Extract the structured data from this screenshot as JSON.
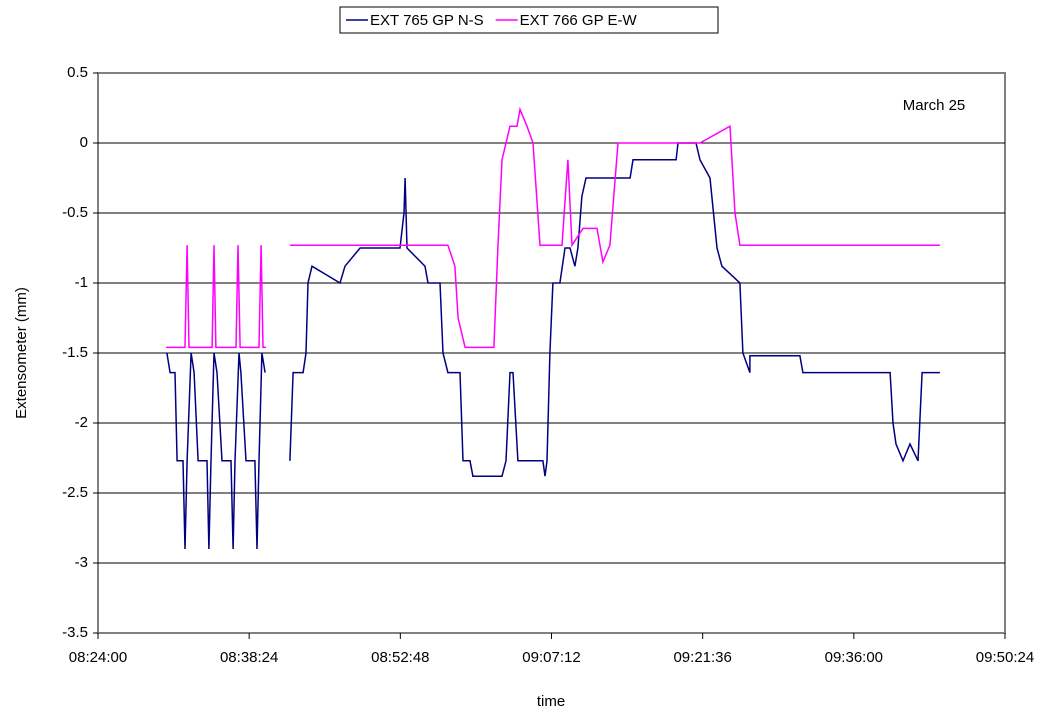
{
  "chart_data": {
    "type": "line",
    "x_label": "time",
    "y_label": "Extensometer (mm)",
    "annotation": "March 25",
    "xlim": [
      "08:24:00",
      "09:50:24"
    ],
    "xticks": [
      "08:24:00",
      "08:38:24",
      "08:52:48",
      "09:07:12",
      "09:21:36",
      "09:36:00",
      "09:50:24"
    ],
    "ylim": [
      -3.5,
      0.5
    ],
    "yticks": [
      0.5,
      0,
      -0.5,
      -1,
      -1.5,
      -2,
      -2.5,
      -3,
      -3.5
    ],
    "grid": true,
    "legend": "top",
    "series": [
      {
        "name": "EXT 765 GP N-S",
        "color": "#000080",
        "x": [
          "08:30:34",
          "08:30:52",
          "08:31:20",
          "08:31:32",
          "08:32:06",
          "08:32:17",
          "08:32:29",
          "08:32:52",
          "08:33:09",
          "08:33:32",
          "08:34:23",
          "08:34:34",
          "08:34:46",
          "08:35:03",
          "08:35:20",
          "08:35:49",
          "08:36:40",
          "08:36:52",
          "08:37:03",
          "08:37:26",
          "08:37:37",
          "08:38:06",
          "08:38:57",
          "08:39:09",
          "08:39:20",
          "08:39:37",
          "08:39:55",
          null,
          "08:42:17",
          "08:42:35",
          "08:43:32",
          "08:43:49",
          "08:44:00",
          "08:44:23",
          "08:47:03",
          "08:47:32",
          "08:48:58",
          "08:52:46",
          "08:53:09",
          "08:53:15",
          "08:53:26",
          "08:55:09",
          "08:55:26",
          "08:56:35",
          "08:56:52",
          "08:57:20",
          "08:58:29",
          "08:58:46",
          "08:59:26",
          "08:59:43",
          "09:02:29",
          "09:02:52",
          "09:03:15",
          "09:03:32",
          "09:04:00",
          "09:06:23",
          "09:06:35",
          "09:06:46",
          "09:07:03",
          "09:07:20",
          "09:08:00",
          "09:08:29",
          "09:08:58",
          "09:09:26",
          "09:09:43",
          "09:10:06",
          "09:10:29",
          "09:14:41",
          "09:14:58",
          "09:19:04",
          "09:19:15",
          "09:20:58",
          "09:21:21",
          "09:22:18",
          "09:22:58",
          "09:23:26",
          "09:25:09",
          "09:25:26",
          "09:26:06",
          "09:26:06",
          "09:30:52",
          "09:31:09",
          "09:39:27",
          "09:39:44",
          "09:40:01",
          "09:40:41",
          "09:41:21",
          "09:42:07",
          "09:42:30",
          "09:44:12"
        ],
        "values": [
          -1.5,
          -1.64,
          -1.64,
          -2.27,
          -2.27,
          -2.9,
          -2.27,
          -1.5,
          -1.64,
          -2.27,
          -2.27,
          -2.9,
          -2.27,
          -1.5,
          -1.64,
          -2.27,
          -2.27,
          -2.9,
          -2.27,
          -1.5,
          -1.64,
          -2.27,
          -2.27,
          -2.9,
          -2.27,
          -1.5,
          -1.64,
          null,
          -2.27,
          -1.64,
          -1.64,
          -1.5,
          -1.0,
          -0.88,
          -1.0,
          -0.88,
          -0.75,
          -0.75,
          -0.5,
          -0.25,
          -0.75,
          -0.88,
          -1.0,
          -1.0,
          -1.5,
          -1.64,
          -1.64,
          -2.27,
          -2.27,
          -2.38,
          -2.38,
          -2.27,
          -1.64,
          -1.64,
          -2.27,
          -2.27,
          -2.38,
          -2.27,
          -1.5,
          -1.0,
          -1.0,
          -0.75,
          -0.75,
          -0.88,
          -0.75,
          -0.38,
          -0.25,
          -0.25,
          -0.12,
          -0.12,
          0,
          0,
          -0.12,
          -0.25,
          -0.75,
          -0.88,
          -1.0,
          -1.5,
          -1.64,
          -1.52,
          -1.52,
          -1.64,
          -1.64,
          -2.0,
          -2.15,
          -2.27,
          -2.15,
          -2.27,
          -1.64,
          -1.64
        ]
      },
      {
        "name": "EXT 766 GP E-W",
        "color": "#ff00ff",
        "x": [
          "08:30:29",
          "08:32:17",
          "08:32:29",
          "08:32:40",
          "08:34:52",
          "08:35:03",
          "08:35:14",
          "08:37:09",
          "08:37:20",
          "08:37:32",
          "08:39:20",
          "08:39:32",
          "08:39:43",
          "08:40:00",
          null,
          "08:42:17",
          "08:56:35",
          "08:57:20",
          "08:58:00",
          "08:58:18",
          "08:58:58",
          "09:01:43",
          "09:02:06",
          "09:02:29",
          "09:02:52",
          "09:03:15",
          "09:03:55",
          "09:04:12",
          "09:04:52",
          "09:05:26",
          "09:06:06",
          "09:08:12",
          "09:08:46",
          "09:09:09",
          "09:10:12",
          "09:11:32",
          "09:12:06",
          "09:12:46",
          "09:13:32",
          "09:21:21",
          "09:24:12",
          "09:24:41",
          "09:25:09",
          "09:28:58",
          "09:39:27",
          "09:44:12"
        ],
        "values": [
          -1.46,
          -1.46,
          -0.73,
          -1.46,
          -1.46,
          -0.73,
          -1.46,
          -1.46,
          -0.73,
          -1.46,
          -1.46,
          -0.73,
          -1.46,
          -1.46,
          null,
          -0.73,
          -0.73,
          -0.73,
          -0.88,
          -1.25,
          -1.46,
          -1.46,
          -0.73,
          -0.12,
          0,
          0.12,
          0.12,
          0.24,
          0.12,
          0,
          -0.73,
          -0.73,
          -0.12,
          -0.73,
          -0.61,
          -0.61,
          -0.85,
          -0.73,
          0,
          0,
          0.12,
          -0.5,
          -0.73,
          -0.73,
          -0.73,
          -0.73
        ]
      }
    ]
  }
}
